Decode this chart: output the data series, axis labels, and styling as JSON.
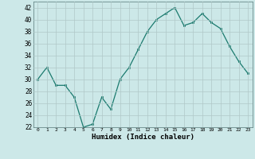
{
  "x": [
    0,
    1,
    2,
    3,
    4,
    5,
    6,
    7,
    8,
    9,
    10,
    11,
    12,
    13,
    14,
    15,
    16,
    17,
    18,
    19,
    20,
    21,
    22,
    23
  ],
  "y": [
    30,
    32,
    29,
    29,
    27,
    22,
    22.5,
    27,
    25,
    30,
    32,
    35,
    38,
    40,
    41,
    42,
    39,
    39.5,
    41,
    39.5,
    38.5,
    35.5,
    33,
    31
  ],
  "xlabel": "Humidex (Indice chaleur)",
  "ylim": [
    22,
    43
  ],
  "xlim": [
    -0.5,
    23.5
  ],
  "yticks": [
    22,
    24,
    26,
    28,
    30,
    32,
    34,
    36,
    38,
    40,
    42
  ],
  "xticks": [
    0,
    1,
    2,
    3,
    4,
    5,
    6,
    7,
    8,
    9,
    10,
    11,
    12,
    13,
    14,
    15,
    16,
    17,
    18,
    19,
    20,
    21,
    22,
    23
  ],
  "line_color": "#1a7a6e",
  "marker_color": "#1a7a6e",
  "bg_color": "#cce8e8",
  "grid_color": "#b0c8c8"
}
